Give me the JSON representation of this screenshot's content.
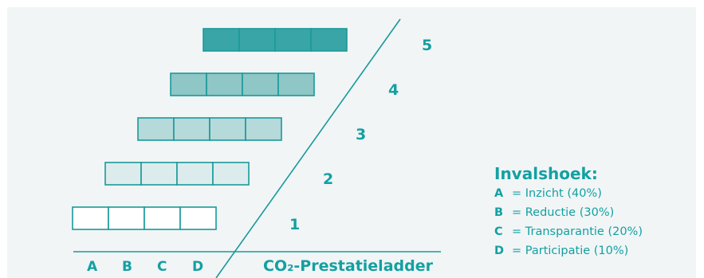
{
  "levels": [
    {
      "label": "1",
      "fill": "#ffffff"
    },
    {
      "label": "2",
      "fill": "#dcecec"
    },
    {
      "label": "3",
      "fill": "#b6d9da"
    },
    {
      "label": "4",
      "fill": "#8fc6c6"
    },
    {
      "label": "5",
      "fill": "#3aa5a6"
    }
  ],
  "columns": [
    "A",
    "B",
    "C",
    "D"
  ],
  "axis_title": "CO₂-Prestatieladder",
  "legend": {
    "title": "Invalshoek:",
    "items": [
      {
        "key": "A",
        "text": "= Inzicht (40%)"
      },
      {
        "key": "B",
        "text": "= Reductie (30%)"
      },
      {
        "key": "C",
        "text": "= Transparantie (20%)"
      },
      {
        "key": "D",
        "text": "= Participatie (10%)"
      }
    ]
  },
  "colors": {
    "accent": "#14a0a2",
    "stroke": "#19999b"
  }
}
